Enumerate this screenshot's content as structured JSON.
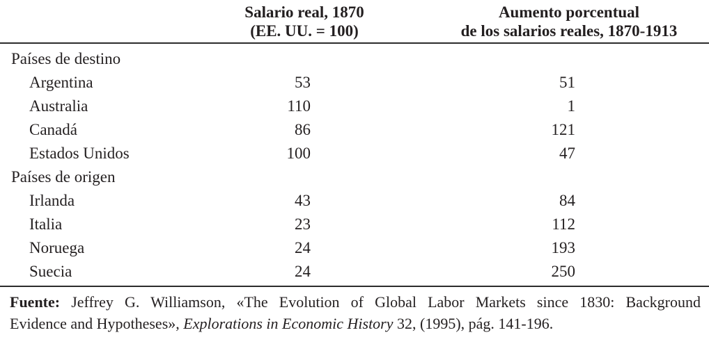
{
  "table": {
    "headers": {
      "salario_line1": "Salario real, 1870",
      "salario_line2": "(EE. UU. = 100)",
      "aumento_line1": "Aumento porcentual",
      "aumento_line2": "de los salarios reales, 1870-1913"
    },
    "groups": [
      {
        "label": "Países de destino",
        "rows": [
          {
            "country": "Argentina",
            "salario": "53",
            "aumento": "51"
          },
          {
            "country": "Australia",
            "salario": "110",
            "aumento": "1"
          },
          {
            "country": "Canadá",
            "salario": "86",
            "aumento": "121"
          },
          {
            "country": "Estados Unidos",
            "salario": "100",
            "aumento": "47"
          }
        ]
      },
      {
        "label": "Países de origen",
        "rows": [
          {
            "country": "Irlanda",
            "salario": "43",
            "aumento": "84"
          },
          {
            "country": "Italia",
            "salario": "23",
            "aumento": "112"
          },
          {
            "country": "Noruega",
            "salario": "24",
            "aumento": "193"
          },
          {
            "country": "Suecia",
            "salario": "24",
            "aumento": "250"
          }
        ]
      }
    ]
  },
  "source": {
    "label": "Fuente:",
    "line1_rest": "Jeffrey G. Williamson, «The Evolution of Global Labor Markets since 1830: Background",
    "line2_prefix": "Evidence and Hypotheses», ",
    "line2_italic": "Explorations in Economic History",
    "line2_suffix": " 32, (1995), pág. 141-196."
  },
  "colors": {
    "text": "#231f20",
    "background": "#ffffff",
    "rule": "#2b2b2b"
  }
}
